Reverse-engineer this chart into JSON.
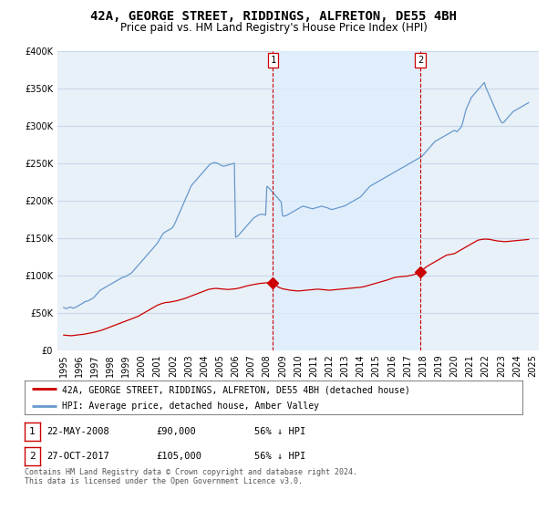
{
  "title": "42A, GEORGE STREET, RIDDINGS, ALFRETON, DE55 4BH",
  "subtitle": "Price paid vs. HM Land Registry's House Price Index (HPI)",
  "legend_label_red": "42A, GEORGE STREET, RIDDINGS, ALFRETON, DE55 4BH (detached house)",
  "legend_label_blue": "HPI: Average price, detached house, Amber Valley",
  "footer": "Contains HM Land Registry data © Crown copyright and database right 2024.\nThis data is licensed under the Open Government Licence v3.0.",
  "transactions": [
    {
      "label": "1",
      "date": "22-MAY-2008",
      "price": "£90,000",
      "hpi": "56% ↓ HPI",
      "year": 2008.39
    },
    {
      "label": "2",
      "date": "27-OCT-2017",
      "price": "£105,000",
      "hpi": "56% ↓ HPI",
      "year": 2017.83
    }
  ],
  "red_dot_prices": [
    90000,
    105000
  ],
  "red_dot_years": [
    2008.39,
    2017.83
  ],
  "hpi_x": [
    1995.0,
    1995.08,
    1995.17,
    1995.25,
    1995.33,
    1995.42,
    1995.5,
    1995.58,
    1995.67,
    1995.75,
    1995.83,
    1995.92,
    1996.0,
    1996.08,
    1996.17,
    1996.25,
    1996.33,
    1996.42,
    1996.5,
    1996.58,
    1996.67,
    1996.75,
    1996.83,
    1996.92,
    1997.0,
    1997.08,
    1997.17,
    1997.25,
    1997.33,
    1997.42,
    1997.5,
    1997.58,
    1997.67,
    1997.75,
    1997.83,
    1997.92,
    1998.0,
    1998.08,
    1998.17,
    1998.25,
    1998.33,
    1998.42,
    1998.5,
    1998.58,
    1998.67,
    1998.75,
    1998.83,
    1998.92,
    1999.0,
    1999.08,
    1999.17,
    1999.25,
    1999.33,
    1999.42,
    1999.5,
    1999.58,
    1999.67,
    1999.75,
    1999.83,
    1999.92,
    2000.0,
    2000.08,
    2000.17,
    2000.25,
    2000.33,
    2000.42,
    2000.5,
    2000.58,
    2000.67,
    2000.75,
    2000.83,
    2000.92,
    2001.0,
    2001.08,
    2001.17,
    2001.25,
    2001.33,
    2001.42,
    2001.5,
    2001.58,
    2001.67,
    2001.75,
    2001.83,
    2001.92,
    2002.0,
    2002.08,
    2002.17,
    2002.25,
    2002.33,
    2002.42,
    2002.5,
    2002.58,
    2002.67,
    2002.75,
    2002.83,
    2002.92,
    2003.0,
    2003.08,
    2003.17,
    2003.25,
    2003.33,
    2003.42,
    2003.5,
    2003.58,
    2003.67,
    2003.75,
    2003.83,
    2003.92,
    2004.0,
    2004.08,
    2004.17,
    2004.25,
    2004.33,
    2004.42,
    2004.5,
    2004.58,
    2004.67,
    2004.75,
    2004.83,
    2004.92,
    2005.0,
    2005.08,
    2005.17,
    2005.25,
    2005.33,
    2005.42,
    2005.5,
    2005.58,
    2005.67,
    2005.75,
    2005.83,
    2005.92,
    2006.0,
    2006.08,
    2006.17,
    2006.25,
    2006.33,
    2006.42,
    2006.5,
    2006.58,
    2006.67,
    2006.75,
    2006.83,
    2006.92,
    2007.0,
    2007.08,
    2007.17,
    2007.25,
    2007.33,
    2007.42,
    2007.5,
    2007.58,
    2007.67,
    2007.75,
    2007.83,
    2007.92,
    2008.0,
    2008.08,
    2008.17,
    2008.25,
    2008.33,
    2008.42,
    2008.5,
    2008.58,
    2008.67,
    2008.75,
    2008.83,
    2008.92,
    2009.0,
    2009.08,
    2009.17,
    2009.25,
    2009.33,
    2009.42,
    2009.5,
    2009.58,
    2009.67,
    2009.75,
    2009.83,
    2009.92,
    2010.0,
    2010.08,
    2010.17,
    2010.25,
    2010.33,
    2010.42,
    2010.5,
    2010.58,
    2010.67,
    2010.75,
    2010.83,
    2010.92,
    2011.0,
    2011.08,
    2011.17,
    2011.25,
    2011.33,
    2011.42,
    2011.5,
    2011.58,
    2011.67,
    2011.75,
    2011.83,
    2011.92,
    2012.0,
    2012.08,
    2012.17,
    2012.25,
    2012.33,
    2012.42,
    2012.5,
    2012.58,
    2012.67,
    2012.75,
    2012.83,
    2012.92,
    2013.0,
    2013.08,
    2013.17,
    2013.25,
    2013.33,
    2013.42,
    2013.5,
    2013.58,
    2013.67,
    2013.75,
    2013.83,
    2013.92,
    2014.0,
    2014.08,
    2014.17,
    2014.25,
    2014.33,
    2014.42,
    2014.5,
    2014.58,
    2014.67,
    2014.75,
    2014.83,
    2014.92,
    2015.0,
    2015.08,
    2015.17,
    2015.25,
    2015.33,
    2015.42,
    2015.5,
    2015.58,
    2015.67,
    2015.75,
    2015.83,
    2015.92,
    2016.0,
    2016.08,
    2016.17,
    2016.25,
    2016.33,
    2016.42,
    2016.5,
    2016.58,
    2016.67,
    2016.75,
    2016.83,
    2016.92,
    2017.0,
    2017.08,
    2017.17,
    2017.25,
    2017.33,
    2017.42,
    2017.5,
    2017.58,
    2017.67,
    2017.75,
    2017.83,
    2017.92,
    2018.0,
    2018.08,
    2018.17,
    2018.25,
    2018.33,
    2018.42,
    2018.5,
    2018.58,
    2018.67,
    2018.75,
    2018.83,
    2018.92,
    2019.0,
    2019.08,
    2019.17,
    2019.25,
    2019.33,
    2019.42,
    2019.5,
    2019.58,
    2019.67,
    2019.75,
    2019.83,
    2019.92,
    2020.0,
    2020.08,
    2020.17,
    2020.25,
    2020.33,
    2020.42,
    2020.5,
    2020.58,
    2020.67,
    2020.75,
    2020.83,
    2020.92,
    2021.0,
    2021.08,
    2021.17,
    2021.25,
    2021.33,
    2021.42,
    2021.5,
    2021.58,
    2021.67,
    2021.75,
    2021.83,
    2021.92,
    2022.0,
    2022.08,
    2022.17,
    2022.25,
    2022.33,
    2022.42,
    2022.5,
    2022.58,
    2022.67,
    2022.75,
    2022.83,
    2022.92,
    2023.0,
    2023.08,
    2023.17,
    2023.25,
    2023.33,
    2023.42,
    2023.5,
    2023.58,
    2023.67,
    2023.75,
    2023.83,
    2023.92,
    2024.0,
    2024.08,
    2024.17,
    2024.25,
    2024.33,
    2024.42,
    2024.5,
    2024.58,
    2024.67,
    2024.75
  ],
  "hpi_y": [
    57000,
    56000,
    55500,
    56000,
    57000,
    57500,
    57000,
    56000,
    56500,
    57000,
    58000,
    59000,
    60000,
    61000,
    62000,
    63000,
    64500,
    65000,
    65500,
    66000,
    67000,
    68000,
    69000,
    70000,
    72000,
    74000,
    76000,
    78000,
    80000,
    81000,
    82000,
    83000,
    84000,
    85000,
    86000,
    87000,
    88000,
    89000,
    90000,
    91000,
    92000,
    93000,
    94000,
    95000,
    96000,
    97000,
    97500,
    98000,
    99000,
    100000,
    101000,
    102000,
    103000,
    105000,
    107000,
    109000,
    111000,
    113000,
    115000,
    117000,
    119000,
    121000,
    123000,
    125000,
    127000,
    129000,
    131000,
    133000,
    135000,
    137000,
    139000,
    141000,
    143000,
    146000,
    149000,
    152000,
    155000,
    157000,
    158000,
    159000,
    160000,
    161000,
    162000,
    163000,
    165000,
    168000,
    172000,
    176000,
    180000,
    184000,
    188000,
    192000,
    196000,
    200000,
    204000,
    208000,
    212000,
    216000,
    220000,
    222000,
    224000,
    226000,
    228000,
    230000,
    232000,
    234000,
    236000,
    238000,
    240000,
    242000,
    244000,
    246000,
    248000,
    249000,
    250000,
    250500,
    250800,
    250500,
    250000,
    249000,
    248000,
    247000,
    246500,
    246000,
    246500,
    247000,
    247500,
    248000,
    248500,
    249000,
    249500,
    250000,
    151000,
    152000,
    153000,
    155000,
    157000,
    159000,
    161000,
    163000,
    165000,
    167000,
    169000,
    171000,
    173000,
    175000,
    177000,
    178000,
    179000,
    180000,
    181000,
    181500,
    181800,
    181500,
    181000,
    180500,
    219000,
    218000,
    216000,
    214000,
    212000,
    210000,
    208000,
    206000,
    204000,
    202000,
    200000,
    198000,
    180000,
    179000,
    179500,
    180000,
    181000,
    182000,
    183000,
    184000,
    185000,
    186000,
    187000,
    188000,
    189000,
    190000,
    191000,
    192000,
    192500,
    192000,
    191500,
    191000,
    190500,
    190000,
    189500,
    189000,
    189500,
    190000,
    190500,
    191000,
    191500,
    192000,
    192500,
    192000,
    191500,
    191000,
    190500,
    190000,
    189000,
    188500,
    188000,
    188500,
    189000,
    189500,
    190000,
    190500,
    191000,
    191500,
    192000,
    192500,
    193000,
    194000,
    195000,
    196000,
    197000,
    198000,
    199000,
    200000,
    201000,
    202000,
    203000,
    204000,
    205000,
    207000,
    209000,
    211000,
    213000,
    215000,
    217000,
    219000,
    220000,
    221000,
    222000,
    223000,
    224000,
    225000,
    226000,
    227000,
    228000,
    229000,
    230000,
    231000,
    232000,
    233000,
    234000,
    235000,
    236000,
    237000,
    238000,
    239000,
    240000,
    241000,
    242000,
    243000,
    244000,
    245000,
    246000,
    247000,
    248000,
    249000,
    250000,
    251000,
    252000,
    253000,
    254000,
    255000,
    256000,
    257000,
    258000,
    259000,
    261000,
    263000,
    265000,
    267000,
    269000,
    271000,
    273000,
    275000,
    277000,
    279000,
    280000,
    281000,
    282000,
    283000,
    284000,
    285000,
    286000,
    287000,
    288000,
    289000,
    290000,
    291000,
    292000,
    293000,
    294000,
    293000,
    292000,
    294000,
    296000,
    298000,
    302000,
    308000,
    316000,
    322000,
    326000,
    330000,
    334000,
    338000,
    340000,
    342000,
    344000,
    346000,
    348000,
    350000,
    352000,
    354000,
    356000,
    358000,
    352000,
    348000,
    344000,
    340000,
    336000,
    332000,
    328000,
    324000,
    320000,
    316000,
    312000,
    308000,
    305000,
    304000,
    305000,
    307000,
    309000,
    311000,
    313000,
    315000,
    317000,
    319000,
    320000,
    321000,
    322000,
    323000,
    324000,
    325000,
    326000,
    327000,
    328000,
    329000,
    330000,
    331000
  ],
  "red_x": [
    1995.0,
    1995.25,
    1995.5,
    1995.75,
    1996.0,
    1996.25,
    1996.5,
    1996.75,
    1997.0,
    1997.25,
    1997.5,
    1997.75,
    1998.0,
    1998.25,
    1998.5,
    1998.75,
    1999.0,
    1999.25,
    1999.5,
    1999.75,
    2000.0,
    2000.25,
    2000.5,
    2000.75,
    2001.0,
    2001.25,
    2001.5,
    2001.75,
    2002.0,
    2002.25,
    2002.5,
    2002.75,
    2003.0,
    2003.25,
    2003.5,
    2003.75,
    2004.0,
    2004.25,
    2004.5,
    2004.75,
    2005.0,
    2005.25,
    2005.5,
    2005.75,
    2006.0,
    2006.25,
    2006.5,
    2006.75,
    2007.0,
    2007.25,
    2007.5,
    2007.75,
    2008.0,
    2008.25,
    2008.39,
    2008.5,
    2008.75,
    2009.0,
    2009.25,
    2009.5,
    2009.75,
    2010.0,
    2010.25,
    2010.5,
    2010.75,
    2011.0,
    2011.25,
    2011.5,
    2011.75,
    2012.0,
    2012.25,
    2012.5,
    2012.75,
    2013.0,
    2013.25,
    2013.5,
    2013.75,
    2014.0,
    2014.25,
    2014.5,
    2014.75,
    2015.0,
    2015.25,
    2015.5,
    2015.75,
    2016.0,
    2016.25,
    2016.5,
    2016.75,
    2017.0,
    2017.25,
    2017.5,
    2017.83,
    2018.0,
    2018.25,
    2018.5,
    2018.75,
    2019.0,
    2019.25,
    2019.5,
    2019.75,
    2020.0,
    2020.25,
    2020.5,
    2020.75,
    2021.0,
    2021.25,
    2021.5,
    2021.75,
    2022.0,
    2022.25,
    2022.5,
    2022.75,
    2023.0,
    2023.25,
    2023.5,
    2023.75,
    2024.0,
    2024.25,
    2024.5,
    2024.75
  ],
  "red_y": [
    20000,
    19500,
    19200,
    19800,
    20500,
    21000,
    22000,
    23000,
    24000,
    25500,
    27000,
    29000,
    31000,
    33000,
    35000,
    37000,
    39000,
    41000,
    43000,
    45000,
    48000,
    51000,
    54000,
    57000,
    60000,
    62000,
    63500,
    64000,
    65000,
    66000,
    67500,
    69000,
    71000,
    73000,
    75000,
    77000,
    79000,
    81000,
    82000,
    82500,
    82000,
    81500,
    81000,
    81500,
    82000,
    83000,
    84500,
    86000,
    87000,
    88000,
    89000,
    89500,
    90000,
    90500,
    90000,
    88000,
    84000,
    82000,
    81000,
    80000,
    79500,
    79000,
    79500,
    80000,
    80500,
    81000,
    81500,
    81000,
    80500,
    80000,
    80500,
    81000,
    81500,
    82000,
    82500,
    83000,
    83500,
    84000,
    85000,
    86500,
    88000,
    89500,
    91000,
    92500,
    94000,
    96000,
    97500,
    98000,
    98500,
    99000,
    100000,
    101500,
    105000,
    108000,
    112000,
    115000,
    118000,
    121000,
    124000,
    127000,
    128000,
    129000,
    132000,
    135000,
    138000,
    141000,
    144000,
    147000,
    148000,
    148500,
    148000,
    147000,
    146000,
    145500,
    145000,
    145500,
    146000,
    146500,
    147000,
    147500,
    148000
  ],
  "ylim": [
    0,
    400000
  ],
  "yticks": [
    0,
    50000,
    100000,
    150000,
    200000,
    250000,
    300000,
    350000,
    400000
  ],
  "ytick_labels": [
    "£0",
    "£50K",
    "£100K",
    "£150K",
    "£200K",
    "£250K",
    "£300K",
    "£350K",
    "£400K"
  ],
  "xlim_start": 1994.6,
  "xlim_end": 2025.4,
  "xticks": [
    1995,
    1996,
    1997,
    1998,
    1999,
    2000,
    2001,
    2002,
    2003,
    2004,
    2005,
    2006,
    2007,
    2008,
    2009,
    2010,
    2011,
    2012,
    2013,
    2014,
    2015,
    2016,
    2017,
    2018,
    2019,
    2020,
    2021,
    2022,
    2023,
    2024,
    2025
  ],
  "red_color": "#cc0000",
  "blue_color": "#6699cc",
  "fill_color": "#ddeeff",
  "vline_color": "#cc0000",
  "dot_color": "#cc0000",
  "background_chart": "#e8f0f8",
  "grid_color": "#c8d8e8",
  "title_fontsize": 10,
  "subtitle_fontsize": 8.5,
  "axis_fontsize": 7
}
